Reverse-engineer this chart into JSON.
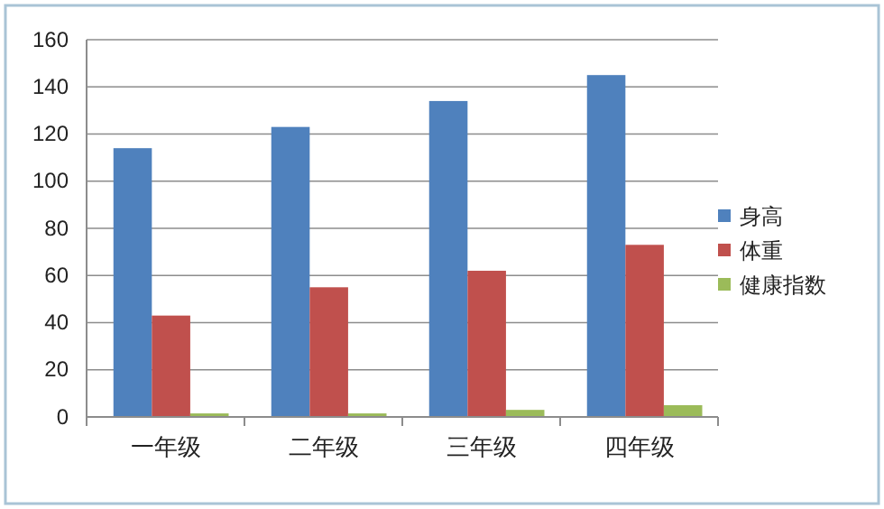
{
  "chart_data": {
    "type": "bar",
    "categories": [
      "一年级",
      "二年级",
      "三年级",
      "四年级"
    ],
    "series": [
      {
        "name": "身高",
        "color": "#4f81bd",
        "values": [
          114,
          123,
          134,
          145
        ]
      },
      {
        "name": "体重",
        "color": "#c0504d",
        "values": [
          43,
          55,
          62,
          73
        ]
      },
      {
        "name": "健康指数",
        "color": "#9bbb59",
        "values": [
          1.5,
          1.5,
          3,
          5
        ]
      }
    ],
    "ylim": [
      0,
      160
    ],
    "yticks": [
      0,
      20,
      40,
      60,
      80,
      100,
      120,
      140,
      160
    ],
    "grid": "y",
    "legend": "right"
  }
}
